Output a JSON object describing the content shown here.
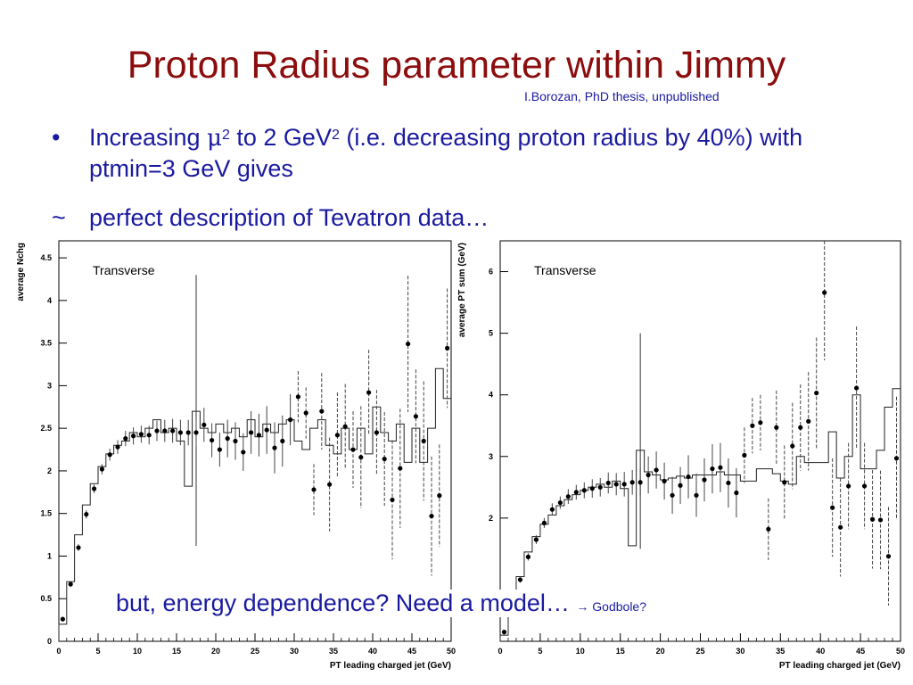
{
  "slide": {
    "title": "Proton Radius parameter within Jimmy",
    "credit": "I.Borozan, PhD thesis, unpublished",
    "bullet1_marker": "•",
    "bullet1_a": "Increasing ",
    "bullet1_mu": "μ",
    "bullet1_sup1": "2",
    "bullet1_b": " to 2 GeV",
    "bullet1_sup2": "2",
    "bullet1_c": " (i.e. decreasing proton radius by 40%) with ptmin=3 GeV gives",
    "bullet2_marker": "~",
    "bullet2": "perfect description of Tevatron data…",
    "footer_main": "but, energy dependence?  Need a model…",
    "footer_arrow": "→ Godbole?",
    "colors": {
      "title": "#8b0d0d",
      "text": "#1a1aa0"
    }
  },
  "chart_data": [
    {
      "type": "scatter",
      "title": "",
      "annotation": "Transverse",
      "xlabel": "PT leading charged jet (GeV)",
      "ylabel": "average Nchg",
      "xlim": [
        0,
        50
      ],
      "ylim": [
        0,
        4.7
      ],
      "xticks": [
        0,
        5,
        10,
        15,
        20,
        25,
        30,
        35,
        40,
        45,
        50
      ],
      "yticks": [
        0,
        0.5,
        1,
        1.5,
        2,
        2.5,
        3,
        3.5,
        4,
        4.5
      ],
      "data_points": {
        "x": [
          0.5,
          1.5,
          2.5,
          3.5,
          4.5,
          5.5,
          6.5,
          7.5,
          8.5,
          9.5,
          10.5,
          11.5,
          12.5,
          13.5,
          14.5,
          15.5,
          16.5,
          17.5,
          18.5,
          19.5,
          20.5,
          21.5,
          22.5,
          23.5,
          24.5,
          25.5,
          26.5,
          27.5,
          28.5,
          29.5,
          30.5,
          31.5,
          32.5,
          33.5,
          34.5,
          35.5,
          36.5,
          37.5,
          38.5,
          39.5,
          40.5,
          41.5,
          42.5,
          43.5,
          44.5,
          45.5,
          46.5,
          47.5,
          48.5,
          49.5
        ],
        "y": [
          0.26,
          0.67,
          1.1,
          1.49,
          1.79,
          2.02,
          2.19,
          2.28,
          2.38,
          2.41,
          2.43,
          2.42,
          2.47,
          2.47,
          2.47,
          2.45,
          2.45,
          2.45,
          2.54,
          2.36,
          2.25,
          2.38,
          2.35,
          2.22,
          2.45,
          2.42,
          2.48,
          2.27,
          2.35,
          2.6,
          2.87,
          2.68,
          1.78,
          2.7,
          1.84,
          2.42,
          2.52,
          2.25,
          2.16,
          2.92,
          2.45,
          2.14,
          1.66,
          2.03,
          3.49,
          2.64,
          2.35,
          1.47,
          1.71,
          3.44
        ],
        "err": [
          0.02,
          0.03,
          0.04,
          0.05,
          0.05,
          0.06,
          0.07,
          0.08,
          0.09,
          0.1,
          0.1,
          0.11,
          0.12,
          0.13,
          0.14,
          0.15,
          0.15,
          0.16,
          0.2,
          0.2,
          0.2,
          0.22,
          0.22,
          0.22,
          0.25,
          0.25,
          0.28,
          0.3,
          0.3,
          0.3,
          0.3,
          0.3,
          0.3,
          0.45,
          0.55,
          0.5,
          0.5,
          0.45,
          0.6,
          0.5,
          0.5,
          0.55,
          0.7,
          0.7,
          0.8,
          0.55,
          0.7,
          0.7,
          0.6,
          0.7
        ]
      },
      "model_histogram": {
        "edges": [
          0,
          1,
          2,
          3,
          4,
          5,
          6,
          7,
          8,
          9,
          10,
          11,
          12,
          13,
          14,
          15,
          16,
          17,
          18,
          19,
          20,
          21,
          22,
          23,
          24,
          25,
          26,
          27,
          28,
          29,
          30,
          31,
          32,
          33,
          34,
          35,
          36,
          37,
          38,
          39,
          40,
          41,
          42,
          43,
          44,
          45,
          46,
          47,
          48,
          49,
          50
        ],
        "values": [
          0.2,
          0.7,
          1.25,
          1.6,
          1.85,
          2.05,
          2.2,
          2.3,
          2.35,
          2.45,
          2.4,
          2.5,
          2.6,
          2.45,
          2.5,
          2.35,
          1.82,
          2.7,
          2.5,
          2.45,
          2.55,
          2.45,
          2.5,
          2.4,
          2.6,
          2.4,
          2.55,
          2.45,
          2.55,
          2.6,
          2.35,
          2.25,
          2.5,
          2.6,
          2.3,
          2.2,
          2.5,
          2.25,
          2.5,
          2.2,
          2.75,
          2.45,
          2.35,
          2.55,
          2.1,
          2.5,
          2.1,
          2.5,
          3.2,
          2.85
        ],
        "stat_err_bar": {
          "x": 17.5,
          "low": 1.12,
          "high": 4.3
        }
      }
    },
    {
      "type": "scatter",
      "title": "",
      "annotation": "Transverse",
      "xlabel": "PT leading charged jet (GeV)",
      "ylabel": "average PT sum (GeV)",
      "xlim": [
        0,
        50
      ],
      "ylim": [
        0,
        6.5
      ],
      "xticks": [
        0,
        5,
        10,
        15,
        20,
        25,
        30,
        35,
        40,
        45,
        50
      ],
      "yticks": [
        2,
        3,
        4,
        5,
        6
      ],
      "data_points": {
        "x": [
          0.5,
          1.5,
          2.5,
          3.5,
          4.5,
          5.5,
          6.5,
          7.5,
          8.5,
          9.5,
          10.5,
          11.5,
          12.5,
          13.5,
          14.5,
          15.5,
          16.5,
          17.5,
          18.5,
          19.5,
          20.5,
          21.5,
          22.5,
          23.5,
          24.5,
          25.5,
          26.5,
          27.5,
          28.5,
          29.5,
          30.5,
          31.5,
          32.5,
          33.5,
          34.5,
          35.5,
          36.5,
          37.5,
          38.5,
          39.5,
          40.5,
          41.5,
          42.5,
          43.5,
          44.5,
          45.5,
          46.5,
          47.5,
          48.5,
          49.5
        ],
        "y": [
          0.15,
          0.5,
          1.0,
          1.37,
          1.65,
          1.92,
          2.14,
          2.25,
          2.35,
          2.42,
          2.45,
          2.48,
          2.5,
          2.57,
          2.55,
          2.55,
          2.58,
          2.58,
          2.7,
          2.78,
          2.6,
          2.37,
          2.53,
          2.67,
          2.37,
          2.62,
          2.8,
          2.82,
          2.57,
          2.41,
          3.02,
          3.5,
          3.55,
          1.82,
          3.47,
          2.58,
          3.17,
          3.47,
          3.57,
          4.03,
          5.66,
          2.17,
          1.85,
          2.52,
          4.11,
          2.52,
          1.98,
          1.97,
          1.38,
          2.97
        ],
        "err": [
          0.02,
          0.03,
          0.05,
          0.06,
          0.07,
          0.08,
          0.1,
          0.1,
          0.12,
          0.12,
          0.13,
          0.15,
          0.15,
          0.17,
          0.18,
          0.2,
          0.2,
          0.22,
          0.3,
          0.3,
          0.3,
          0.3,
          0.3,
          0.35,
          0.35,
          0.35,
          0.4,
          0.4,
          0.4,
          0.4,
          0.45,
          0.45,
          0.45,
          0.5,
          0.6,
          0.6,
          0.7,
          0.7,
          0.8,
          0.9,
          1.1,
          0.8,
          0.8,
          0.7,
          1.0,
          0.7,
          0.8,
          0.8,
          0.8,
          1.0
        ]
      },
      "model_histogram": {
        "edges": [
          0,
          1,
          2,
          3,
          4,
          5,
          6,
          7,
          8,
          9,
          10,
          11,
          12,
          13,
          14,
          15,
          16,
          17,
          18,
          19,
          20,
          21,
          22,
          23,
          24,
          25,
          26,
          27,
          28,
          29,
          30,
          31,
          32,
          33,
          34,
          35,
          36,
          37,
          38,
          39,
          40,
          41,
          42,
          43,
          44,
          45,
          46,
          47,
          48,
          49,
          50
        ],
        "values": [
          0.1,
          0.5,
          1.05,
          1.45,
          1.7,
          1.9,
          2.05,
          2.2,
          2.3,
          2.38,
          2.45,
          2.5,
          2.55,
          2.5,
          2.6,
          2.48,
          1.55,
          3.1,
          2.75,
          2.7,
          2.62,
          2.65,
          2.68,
          2.65,
          2.7,
          2.7,
          2.7,
          2.75,
          2.7,
          2.7,
          2.6,
          2.6,
          2.8,
          2.8,
          2.72,
          2.6,
          2.55,
          3.0,
          2.9,
          2.9,
          2.9,
          3.4,
          2.65,
          3.0,
          4.0,
          2.8,
          2.8,
          3.1,
          3.8,
          4.1
        ],
        "stat_err_bar": {
          "x": 17.5,
          "low": 1.5,
          "high": 5.0
        }
      }
    }
  ]
}
